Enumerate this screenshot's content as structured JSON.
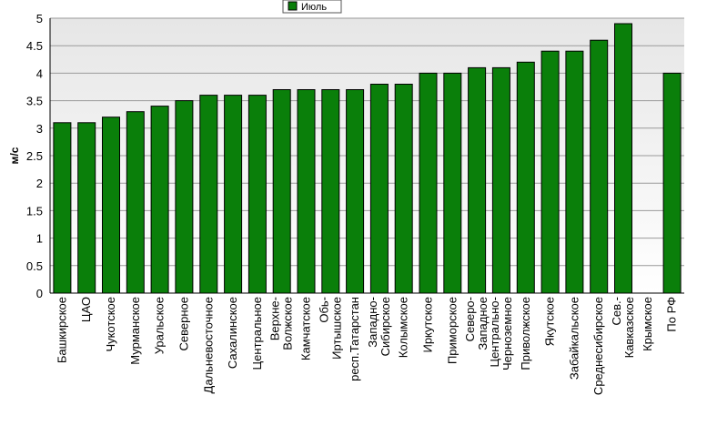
{
  "chart_data": {
    "type": "bar",
    "ylabel": "м/с",
    "ylim": [
      0,
      5
    ],
    "yticks": [
      "0",
      "0.5",
      "1",
      "1.5",
      "2",
      "2.5",
      "3",
      "3.5",
      "4",
      "4.5",
      "5"
    ],
    "grid": true,
    "legend_position": "top-center",
    "series": [
      {
        "name": "Июль",
        "color": "#0a7f0a"
      }
    ],
    "categories": [
      "Башкирское",
      "ЦАО",
      "Чукотское",
      "Мурманское",
      "Уральское",
      "Северное",
      "Дальневосточное",
      "Сахалинское",
      "Центральное",
      "Верхне-Волжское",
      "Камчатское",
      "Обь-Иртышское",
      "респ.Татарстан",
      "Западно-Сибирское",
      "Колымское",
      "Иркутское",
      "Приморское",
      "Северо-Западное",
      "Центрально-Черноземное",
      "Приволжское",
      "Якутское",
      "Забайкальское",
      "Среднесибирское",
      "Сев.-Кавказское",
      "Крымское",
      "По РФ"
    ],
    "category_lines": [
      [
        "Башкирское"
      ],
      [
        "ЦАО"
      ],
      [
        "Чукотское"
      ],
      [
        "Мурманское"
      ],
      [
        "Уральское"
      ],
      [
        "Северное"
      ],
      [
        "Дальневосточное"
      ],
      [
        "Сахалинское"
      ],
      [
        "Центральное"
      ],
      [
        "Верхне-",
        "Волжское"
      ],
      [
        "Камчатское"
      ],
      [
        "Обь-",
        "Иртышское"
      ],
      [
        "респ.Татарстан"
      ],
      [
        "Западно-",
        "Сибирское"
      ],
      [
        "Колымское"
      ],
      [
        "Иркутское"
      ],
      [
        "Приморское"
      ],
      [
        "Северо-",
        "Западное"
      ],
      [
        "Центрально-",
        "Черноземное"
      ],
      [
        "Приволжское"
      ],
      [
        "Якутское"
      ],
      [
        "Забайкальское"
      ],
      [
        "Среднесибирское"
      ],
      [
        "Сев.-",
        "Кавказское"
      ],
      [
        "Крымское"
      ],
      [
        "По РФ"
      ]
    ],
    "values": [
      3.1,
      3.1,
      3.2,
      3.3,
      3.4,
      3.5,
      3.6,
      3.6,
      3.6,
      3.7,
      3.7,
      3.7,
      3.7,
      3.8,
      3.8,
      4.0,
      4.0,
      4.1,
      4.1,
      4.2,
      4.4,
      4.4,
      4.6,
      4.9,
      null,
      4.0
    ]
  }
}
